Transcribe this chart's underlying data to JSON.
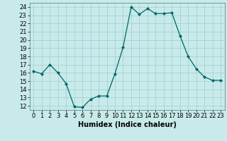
{
  "x": [
    0,
    1,
    2,
    3,
    4,
    5,
    6,
    7,
    8,
    9,
    10,
    11,
    12,
    13,
    14,
    15,
    16,
    17,
    18,
    19,
    20,
    21,
    22,
    23
  ],
  "y": [
    16.2,
    15.9,
    17.0,
    16.0,
    14.7,
    11.9,
    11.8,
    12.8,
    13.2,
    13.2,
    15.9,
    19.1,
    24.0,
    23.1,
    23.8,
    23.2,
    23.2,
    23.3,
    20.5,
    18.0,
    16.5,
    15.5,
    15.1,
    15.1
  ],
  "xlabel": "Humidex (Indice chaleur)",
  "line_color": "#006666",
  "marker_color": "#006666",
  "bg_color": "#c8eaea",
  "grid_color": "#a0cccc",
  "ylim": [
    11.5,
    24.5
  ],
  "xlim": [
    -0.5,
    23.5
  ],
  "yticks": [
    12,
    13,
    14,
    15,
    16,
    17,
    18,
    19,
    20,
    21,
    22,
    23,
    24
  ],
  "xtick_labels": [
    "0",
    "1",
    "2",
    "3",
    "4",
    "5",
    "6",
    "7",
    "8",
    "9",
    "10",
    "11",
    "12",
    "13",
    "14",
    "15",
    "16",
    "17",
    "18",
    "19",
    "20",
    "21",
    "22",
    "23"
  ],
  "label_fontsize": 7,
  "tick_fontsize": 6
}
